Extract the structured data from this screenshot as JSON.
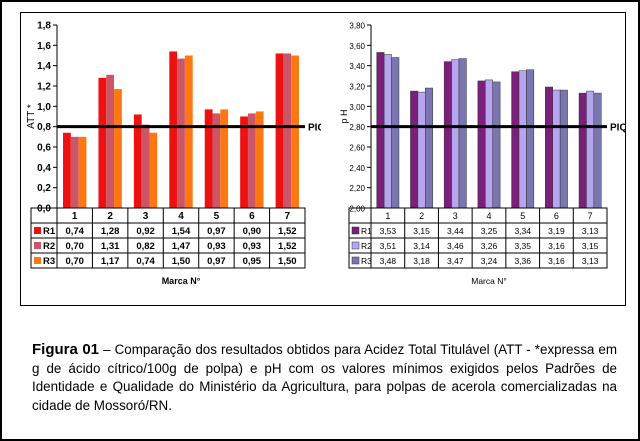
{
  "charts": [
    {
      "type": "bar",
      "categories": [
        "1",
        "2",
        "3",
        "4",
        "5",
        "6",
        "7"
      ],
      "ylabel": "ATT *",
      "xlabel": "Marca N°",
      "ylim": [
        0,
        1.8
      ],
      "yticks": [
        "0,0",
        "0,2",
        "0,4",
        "0,6",
        "0,8",
        "1,0",
        "1,2",
        "1,4",
        "1,6",
        "1,8"
      ],
      "threshold": {
        "label": "PIQ",
        "value": 0.8
      },
      "series": [
        {
          "name": "R1",
          "color": "#ee1111",
          "values": [
            0.74,
            1.28,
            0.92,
            1.54,
            0.97,
            0.9,
            1.52
          ],
          "labels": [
            "0,74",
            "1,28",
            "0,92",
            "1,54",
            "0,97",
            "0,90",
            "1,52"
          ]
        },
        {
          "name": "R2",
          "color": "#cc5566",
          "values": [
            0.7,
            1.31,
            0.82,
            1.47,
            0.93,
            0.93,
            1.52
          ],
          "labels": [
            "0,70",
            "1,31",
            "0,82",
            "1,47",
            "0,93",
            "0,93",
            "1,52"
          ]
        },
        {
          "name": "R3",
          "color": "#ff7711",
          "values": [
            0.7,
            1.17,
            0.74,
            1.5,
            0.97,
            0.95,
            1.5
          ],
          "labels": [
            "0,70",
            "1,17",
            "0,74",
            "1,50",
            "0,97",
            "0,95",
            "1,50"
          ]
        }
      ]
    },
    {
      "type": "bar",
      "categories": [
        "1",
        "2",
        "3",
        "4",
        "5",
        "6",
        "7"
      ],
      "ylabel": "p H",
      "xlabel": "Marca N°",
      "ylim": [
        2.0,
        3.8
      ],
      "yticks": [
        "2,00",
        "2,20",
        "2,40",
        "2,60",
        "2,80",
        "3,00",
        "3,20",
        "3,40",
        "3,60",
        "3,80"
      ],
      "threshold": {
        "label": "PIQ",
        "value": 2.8
      },
      "series": [
        {
          "name": "R1",
          "color": "#7a1f7a",
          "values": [
            3.53,
            3.15,
            3.44,
            3.25,
            3.34,
            3.19,
            3.13
          ],
          "labels": [
            "3,53",
            "3,15",
            "3,44",
            "3,25",
            "3,34",
            "3,19",
            "3,13"
          ]
        },
        {
          "name": "R2",
          "color": "#b6a6f0",
          "values": [
            3.51,
            3.14,
            3.46,
            3.26,
            3.35,
            3.16,
            3.15
          ],
          "labels": [
            "3,51",
            "3,14",
            "3,46",
            "3,26",
            "3,35",
            "3,16",
            "3,15"
          ]
        },
        {
          "name": "R3",
          "color": "#7a76b0",
          "values": [
            3.48,
            3.18,
            3.47,
            3.24,
            3.36,
            3.16,
            3.13
          ],
          "labels": [
            "3,48",
            "3,18",
            "3,47",
            "3,24",
            "3,36",
            "3,16",
            "3,13"
          ]
        }
      ]
    }
  ],
  "caption": {
    "label": "Figura 01",
    "text": " – Comparação dos resultados obtidos para Acidez Total Titulável (ATT - *expressa em g de ácido cítrico/100g de polpa) e pH com os valores mínimos exigidos pelos Padrões de Identidade e Qualidade do Ministério da Agricultura, para polpas de acerola comercializadas na cidade de Mossoró/RN."
  }
}
